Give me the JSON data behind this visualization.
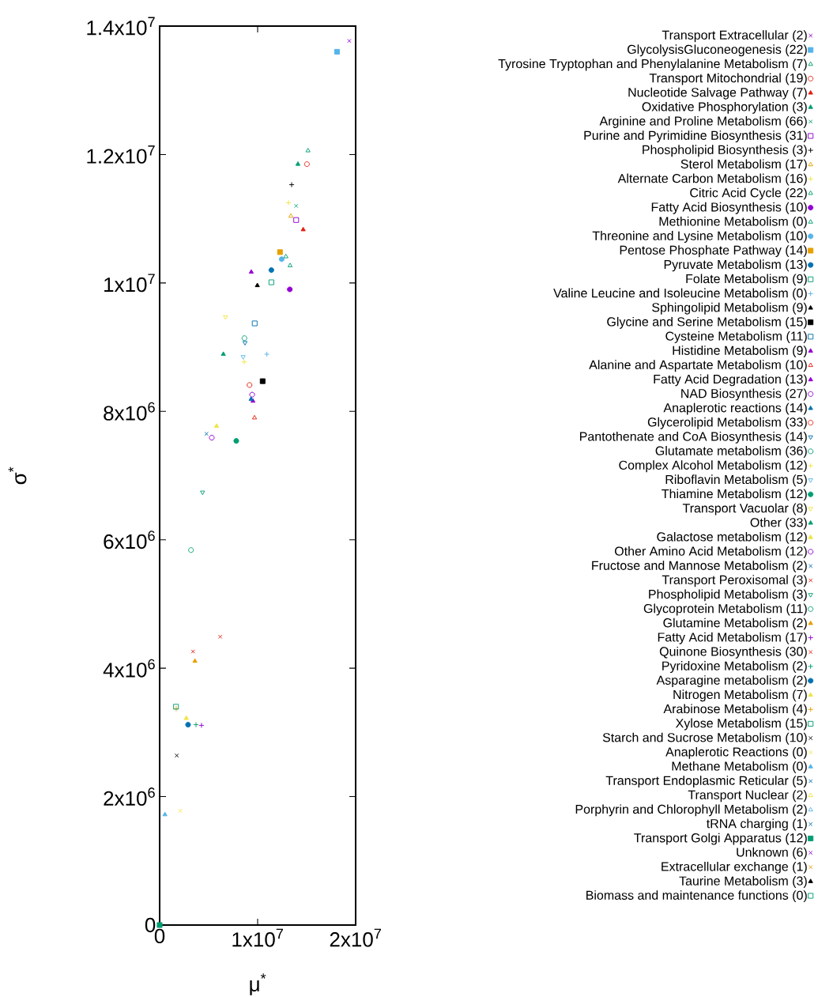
{
  "chart_data": {
    "type": "scatter",
    "xlabel": "μ$^{*}$",
    "ylabel": "σ$^{*}$",
    "xlim": [
      0,
      20000000
    ],
    "ylim": [
      0,
      14000000
    ],
    "xticks": [
      0,
      {
        "value": 10000000,
        "label": "1x10$^{7}$"
      },
      {
        "value": 20000000,
        "label": "2x10$^{7}$"
      }
    ],
    "yticks": [
      0,
      {
        "value": 2000000,
        "label": "2x10$^{6}$"
      },
      {
        "value": 4000000,
        "label": "4x10$^{6}$"
      },
      {
        "value": 6000000,
        "label": "6x10$^{6}$"
      },
      {
        "value": 8000000,
        "label": "8x10$^{6}$"
      },
      {
        "value": 10000000,
        "label": "1x10$^{7}$"
      },
      {
        "value": 12000000,
        "label": "1.2x10$^{7}$"
      },
      {
        "value": 14000000,
        "label": "1.4x10$^{7}$"
      }
    ],
    "legend": "right",
    "series": [
      {
        "name": "Transport Extracellular (2)",
        "color": "#9400d3",
        "marker": "cross",
        "x": [
          19350000
        ],
        "values": [
          13770000
        ]
      },
      {
        "name": "GlycolysisGluconeogenesis (22)",
        "color": "#56b4e9",
        "marker": "square",
        "x": [
          18100000
        ],
        "values": [
          13600000
        ]
      },
      {
        "name": "Tyrosine Tryptophan and Phenylalanine Metabolism (7)",
        "color": "#009e73",
        "marker": "triangle-open",
        "x": [
          15140000
        ],
        "values": [
          12060000
        ]
      },
      {
        "name": "Transport Mitochondrial (19)",
        "color": "#e51e10",
        "marker": "circle-open",
        "x": [
          15030000
        ],
        "values": [
          11850000
        ]
      },
      {
        "name": "Nucleotide Salvage Pathway (7)",
        "color": "#e51e10",
        "marker": "triangle",
        "x": [
          14650000
        ],
        "values": [
          10830000
        ]
      },
      {
        "name": "Oxidative Phosphorylation (3)",
        "color": "#009e73",
        "marker": "triangle",
        "x": [
          14110000
        ],
        "values": [
          11850000
        ]
      },
      {
        "name": "Arginine and Proline Metabolism (66)",
        "color": "#009e73",
        "marker": "cross",
        "x": [
          13930000
        ],
        "values": [
          11200000
        ]
      },
      {
        "name": "Purine and Pyrimidine Biosynthesis (31)",
        "color": "#9400d3",
        "marker": "square-open",
        "x": [
          13930000
        ],
        "values": [
          10980000
        ]
      },
      {
        "name": "Phospholipid Biosynthesis (3)",
        "color": "#000000",
        "marker": "plus",
        "x": [
          13470000
        ],
        "values": [
          11530000
        ]
      },
      {
        "name": "Sterol Metabolism (17)",
        "color": "#e69f00",
        "marker": "triangle-open",
        "x": [
          13390000
        ],
        "values": [
          11040000
        ]
      },
      {
        "name": "Alternate Carbon Metabolism (16)",
        "color": "#f0e442",
        "marker": "plus",
        "x": [
          13150000
        ],
        "values": [
          11250000
        ]
      },
      {
        "name": "Citric Acid Cycle (22)",
        "color": "#009e73",
        "marker": "triangle-open",
        "x": [
          12880000
        ],
        "values": [
          10410000
        ]
      },
      {
        "name": "Fatty Acid Biosynthesis (10)",
        "color": "#9400d3",
        "marker": "circle",
        "x": [
          13280000
        ],
        "values": [
          9900000
        ]
      },
      {
        "name": "Methionine Metabolism (0)",
        "color": "#009e73",
        "marker": "triangle-open",
        "x": [
          13310000
        ],
        "values": [
          10270000
        ]
      },
      {
        "name": "Threonine and Lysine Metabolism (10)",
        "color": "#56b4e9",
        "marker": "circle",
        "x": [
          12450000
        ],
        "values": [
          10370000
        ]
      },
      {
        "name": "Pentose Phosphate Pathway (14)",
        "color": "#e69f00",
        "marker": "square",
        "x": [
          12280000
        ],
        "values": [
          10480000
        ]
      },
      {
        "name": "Pyruvate Metabolism (13)",
        "color": "#0072b2",
        "marker": "circle",
        "x": [
          11400000
        ],
        "values": [
          10200000
        ]
      },
      {
        "name": "Folate Metabolism (9)",
        "color": "#009e73",
        "marker": "square-open",
        "x": [
          11400000
        ],
        "values": [
          10010000
        ]
      },
      {
        "name": "Valine Leucine and Isoleucine Metabolism (0)",
        "color": "#56b4e9",
        "marker": "plus",
        "x": [
          10940000
        ],
        "values": [
          8890000
        ]
      },
      {
        "name": "Sphingolipid Metabolism (9)",
        "color": "#000000",
        "marker": "triangle",
        "x": [
          9970000
        ],
        "values": [
          9960000
        ]
      },
      {
        "name": "Glycine and Serine Metabolism (15)",
        "color": "#000000",
        "marker": "square",
        "x": [
          10510000
        ],
        "values": [
          8470000
        ]
      },
      {
        "name": "Cysteine Metabolism (11)",
        "color": "#0072b2",
        "marker": "square-open",
        "x": [
          9700000
        ],
        "values": [
          9370000
        ]
      },
      {
        "name": "Histidine Metabolism (9)",
        "color": "#9400d3",
        "marker": "triangle",
        "x": [
          9350000
        ],
        "values": [
          10170000
        ]
      },
      {
        "name": "Alanine and Aspartate Metabolism (10)",
        "color": "#e51e10",
        "marker": "triangle-open",
        "x": [
          9680000
        ],
        "values": [
          7900000
        ]
      },
      {
        "name": "Fatty Acid Degradation (13)",
        "color": "#9400d3",
        "marker": "triangle",
        "x": [
          9520000
        ],
        "values": [
          8160000
        ]
      },
      {
        "name": "NAD Biosynthesis (27)",
        "color": "#9400d3",
        "marker": "circle-open",
        "x": [
          9440000
        ],
        "values": [
          8260000
        ]
      },
      {
        "name": "Anaplerotic reactions (14)",
        "color": "#0072b2",
        "marker": "triangle",
        "x": [
          9330000
        ],
        "values": [
          8190000
        ]
      },
      {
        "name": "Glycerolipid Metabolism (33)",
        "color": "#e51e10",
        "marker": "circle-open",
        "x": [
          9170000
        ],
        "values": [
          8410000
        ]
      },
      {
        "name": "Pantothenate and CoA Biosynthesis (14)",
        "color": "#0072b2",
        "marker": "triangle-down-open",
        "x": [
          8710000
        ],
        "values": [
          9070000
        ]
      },
      {
        "name": "Glutamate metabolism (36)",
        "color": "#009e73",
        "marker": "circle-open",
        "x": [
          8650000
        ],
        "values": [
          9140000
        ]
      },
      {
        "name": "Complex Alcohol Metabolism (12)",
        "color": "#f0e442",
        "marker": "plus",
        "x": [
          8630000
        ],
        "values": [
          8770000
        ]
      },
      {
        "name": "Riboflavin Metabolism (5)",
        "color": "#56b4e9",
        "marker": "triangle-down-open",
        "x": [
          8520000
        ],
        "values": [
          8850000
        ]
      },
      {
        "name": "Thiamine Metabolism (12)",
        "color": "#009e73",
        "marker": "circle",
        "x": [
          7820000
        ],
        "values": [
          7540000
        ]
      },
      {
        "name": "Transport Vacuolar (8)",
        "color": "#f0e442",
        "marker": "triangle-down-open",
        "x": [
          6720000
        ],
        "values": [
          9470000
        ]
      },
      {
        "name": "Other (33)",
        "color": "#009e73",
        "marker": "triangle",
        "x": [
          6500000
        ],
        "values": [
          8890000
        ]
      },
      {
        "name": "Galactose metabolism (12)",
        "color": "#f0e442",
        "marker": "triangle",
        "x": [
          5810000
        ],
        "values": [
          7770000
        ]
      },
      {
        "name": "Other Amino Acid Metabolism (12)",
        "color": "#9400d3",
        "marker": "circle-open",
        "x": [
          5320000
        ],
        "values": [
          7590000
        ]
      },
      {
        "name": "Fructose and Mannose Metabolism (2)",
        "color": "#0072b2",
        "marker": "cross",
        "x": [
          4780000
        ],
        "values": [
          7650000
        ]
      },
      {
        "name": "Transport Peroxisomal (3)",
        "color": "#e51e10",
        "marker": "cross",
        "x": [
          6180000
        ],
        "values": [
          4490000
        ]
      },
      {
        "name": "Phospholipid Metabolism (3)",
        "color": "#009e73",
        "marker": "triangle-down-open",
        "x": [
          4380000
        ],
        "values": [
          6740000
        ]
      },
      {
        "name": "Glycoprotein Metabolism (11)",
        "color": "#009e73",
        "marker": "circle-open",
        "x": [
          3200000
        ],
        "values": [
          5840000
        ]
      },
      {
        "name": "Glutamine Metabolism (2)",
        "color": "#e69f00",
        "marker": "triangle",
        "x": [
          3600000
        ],
        "values": [
          4110000
        ]
      },
      {
        "name": "Fatty Acid Metabolism (17)",
        "color": "#9400d3",
        "marker": "plus",
        "x": [
          4270000
        ],
        "values": [
          3110000
        ]
      },
      {
        "name": "Quinone Biosynthesis (30)",
        "color": "#e51e10",
        "marker": "cross",
        "x": [
          3410000
        ],
        "values": [
          4260000
        ]
      },
      {
        "name": "Pyridoxine Metabolism (2)",
        "color": "#009e73",
        "marker": "plus",
        "x": [
          3710000
        ],
        "values": [
          3120000
        ]
      },
      {
        "name": "Asparagine metabolism (2)",
        "color": "#0072b2",
        "marker": "circle",
        "x": [
          2900000
        ],
        "values": [
          3120000
        ]
      },
      {
        "name": "Nitrogen Metabolism (7)",
        "color": "#f0e442",
        "marker": "triangle",
        "x": [
          2720000
        ],
        "values": [
          3220000
        ]
      },
      {
        "name": "Arabinose Metabolism (4)",
        "color": "#e69f00",
        "marker": "plus",
        "x": [
          1690000
        ],
        "values": [
          3370000
        ]
      },
      {
        "name": "Xylose Metabolism (15)",
        "color": "#009e73",
        "marker": "square-open",
        "x": [
          1670000
        ],
        "values": [
          3400000
        ]
      },
      {
        "name": "Starch and Sucrose Metabolism (10)",
        "color": "#000000",
        "marker": "cross",
        "x": [
          1750000
        ],
        "values": [
          2640000
        ]
      },
      {
        "name": "Anaplerotic Reactions (0)",
        "color": "#f0e442",
        "marker": "cross",
        "x": [
          2100000
        ],
        "values": [
          1780000
        ]
      },
      {
        "name": "Methane Metabolism (0)",
        "color": "#56b4e9",
        "marker": "triangle",
        "x": [
          540000
        ],
        "values": [
          1720000
        ]
      },
      {
        "name": "Transport Endoplasmic Reticular (5)",
        "color": "#0072b2",
        "marker": "cross",
        "values": [
          null
        ]
      },
      {
        "name": "Transport Nuclear (2)",
        "color": "#f0e442",
        "marker": "triangle-open",
        "values": [
          null
        ]
      },
      {
        "name": "Porphyrin and Chlorophyll Metabolism (2)",
        "color": "#56b4e9",
        "marker": "triangle-open",
        "values": [
          null
        ]
      },
      {
        "name": "tRNA charging (1)",
        "color": "#0072b2",
        "marker": "cross",
        "values": [
          null
        ]
      },
      {
        "name": "Transport Golgi Apparatus (12)",
        "color": "#009e73",
        "marker": "square",
        "x": [
          0
        ],
        "values": [
          0
        ]
      },
      {
        "name": "Unknown (6)",
        "color": "#9400d3",
        "marker": "cross",
        "values": [
          null
        ]
      },
      {
        "name": "Extracellular exchange (1)",
        "color": "#e69f00",
        "marker": "cross",
        "values": [
          null
        ]
      },
      {
        "name": "Taurine Metabolism (3)",
        "color": "#000000",
        "marker": "triangle",
        "values": [
          null
        ]
      },
      {
        "name": "Biomass and maintenance functions (0)",
        "color": "#009e73",
        "marker": "square-open",
        "values": [
          null
        ]
      }
    ]
  }
}
